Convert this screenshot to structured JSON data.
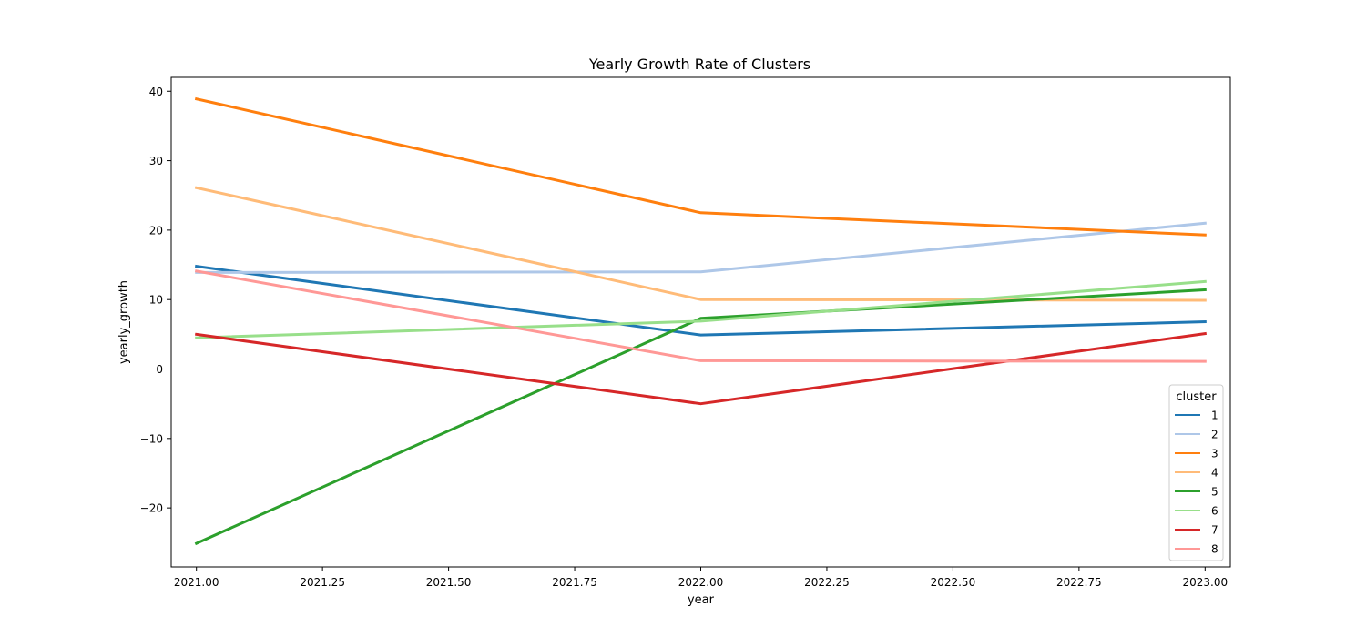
{
  "chart_data": {
    "type": "line",
    "title": "Yearly Growth Rate of Clusters",
    "xlabel": "year",
    "ylabel": "yearly_growth",
    "x": [
      2021,
      2022,
      2023
    ],
    "xlim": [
      2020.95,
      2023.05
    ],
    "ylim": [
      -28.5,
      42.0
    ],
    "x_ticks": [
      2021.0,
      2021.25,
      2021.5,
      2021.75,
      2022.0,
      2022.25,
      2022.5,
      2022.75,
      2023.0
    ],
    "x_tick_labels": [
      "2021.00",
      "2021.25",
      "2021.50",
      "2021.75",
      "2022.00",
      "2022.25",
      "2022.50",
      "2022.75",
      "2023.00"
    ],
    "y_ticks": [
      -20,
      -10,
      0,
      10,
      20,
      30,
      40
    ],
    "y_tick_labels": [
      "−20",
      "−10",
      "0",
      "10",
      "20",
      "30",
      "40"
    ],
    "grid": false,
    "legend": {
      "title": "cluster",
      "placement": "bottom-right"
    },
    "series": [
      {
        "name": "1",
        "color": "#1f77b4",
        "values": [
          14.8,
          4.9,
          6.8
        ]
      },
      {
        "name": "2",
        "color": "#aec7e8",
        "values": [
          13.9,
          14.0,
          21.0
        ]
      },
      {
        "name": "3",
        "color": "#ff7f0e",
        "values": [
          38.9,
          22.5,
          19.3
        ]
      },
      {
        "name": "4",
        "color": "#ffbb78",
        "values": [
          26.1,
          10.0,
          9.9
        ]
      },
      {
        "name": "5",
        "color": "#2ca02c",
        "values": [
          -25.1,
          7.3,
          11.4
        ]
      },
      {
        "name": "6",
        "color": "#98df8a",
        "values": [
          4.5,
          6.9,
          12.6
        ]
      },
      {
        "name": "7",
        "color": "#d62728",
        "values": [
          5.0,
          -5.0,
          5.1
        ]
      },
      {
        "name": "8",
        "color": "#ff9896",
        "values": [
          14.1,
          1.2,
          1.1
        ]
      }
    ]
  }
}
